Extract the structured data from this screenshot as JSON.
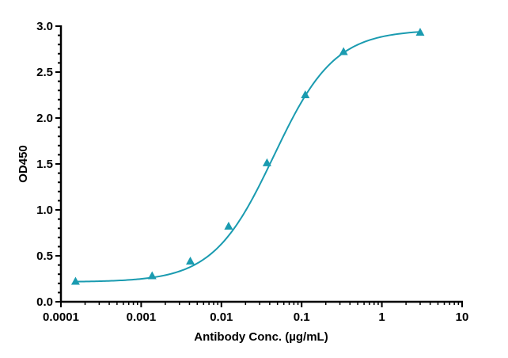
{
  "chart_data": {
    "type": "line",
    "title": "",
    "xlabel": "Antibody Conc. (µg/mL)",
    "ylabel": "OD450",
    "xscale": "log",
    "xlim": [
      0.0001,
      10
    ],
    "ylim": [
      0,
      3.0
    ],
    "x_ticks": [
      "0.0001",
      "0.001",
      "0.01",
      "0.1",
      "1",
      "10"
    ],
    "y_ticks": [
      "0.0",
      "0.5",
      "1.0",
      "1.5",
      "2.0",
      "2.5",
      "3.0"
    ],
    "grid": false,
    "legend": null,
    "series": [
      {
        "name": "OD450",
        "color": "#1a9bb0",
        "marker": "triangle",
        "fit": "4PL sigmoid",
        "x": [
          0.000152,
          0.00137,
          0.0041,
          0.0123,
          0.037,
          0.111,
          0.333,
          3.0
        ],
        "y": [
          0.22,
          0.28,
          0.44,
          0.82,
          1.51,
          2.25,
          2.72,
          2.93
        ]
      }
    ]
  },
  "labels": {
    "xlabel": "Antibody Conc. (µg/mL)",
    "ylabel": "OD450",
    "x_ticks": [
      "0.0001",
      "0.001",
      "0.01",
      "0.1",
      "1",
      "10"
    ],
    "y_ticks": [
      "0.0",
      "0.5",
      "1.0",
      "1.5",
      "2.0",
      "2.5",
      "3.0"
    ]
  }
}
